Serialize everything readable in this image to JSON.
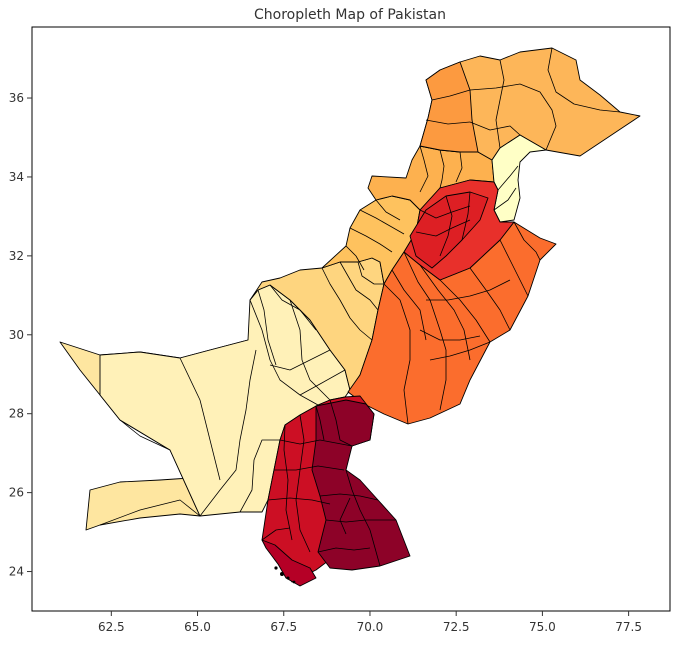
{
  "chart_data": {
    "type": "choropleth",
    "title": "Choropleth Map of Pakistan",
    "xlabel": "",
    "ylabel": "",
    "xlim": [
      60.2,
      78.7
    ],
    "ylim": [
      23.0,
      37.8
    ],
    "x_ticks": [
      62.5,
      65.0,
      67.5,
      70.0,
      72.5,
      75.0,
      77.5
    ],
    "y_ticks": [
      24,
      26,
      28,
      30,
      32,
      34,
      36
    ],
    "x_tick_labels": [
      "62.5",
      "65.0",
      "67.5",
      "70.0",
      "72.5",
      "75.0",
      "77.5"
    ],
    "y_tick_labels": [
      "24",
      "26",
      "28",
      "30",
      "32",
      "34",
      "36"
    ],
    "grid": false,
    "colormap": "YlOrRd",
    "regions": [
      {
        "id": "balochistan-west",
        "color": "#fee6a0"
      },
      {
        "id": "balochistan-east",
        "color": "#fff1b8"
      },
      {
        "id": "balochistan-north",
        "color": "#fed57f"
      },
      {
        "id": "kp-south",
        "color": "#fec25e"
      },
      {
        "id": "kp-central",
        "color": "#fdb14f"
      },
      {
        "id": "gilgit-baltistan",
        "color": "#fdb659"
      },
      {
        "id": "gb-west",
        "color": "#fc9a40"
      },
      {
        "id": "kashmir",
        "color": "#ffffc6"
      },
      {
        "id": "punjab-south",
        "color": "#fb6d2d"
      },
      {
        "id": "punjab-north",
        "color": "#e8302b"
      },
      {
        "id": "punjab-core",
        "color": "#dd1f24"
      },
      {
        "id": "sindh-west",
        "color": "#cc0f24"
      },
      {
        "id": "sindh-east",
        "color": "#8d0228"
      },
      {
        "id": "sindh-south",
        "color": "#b50026"
      }
    ]
  }
}
